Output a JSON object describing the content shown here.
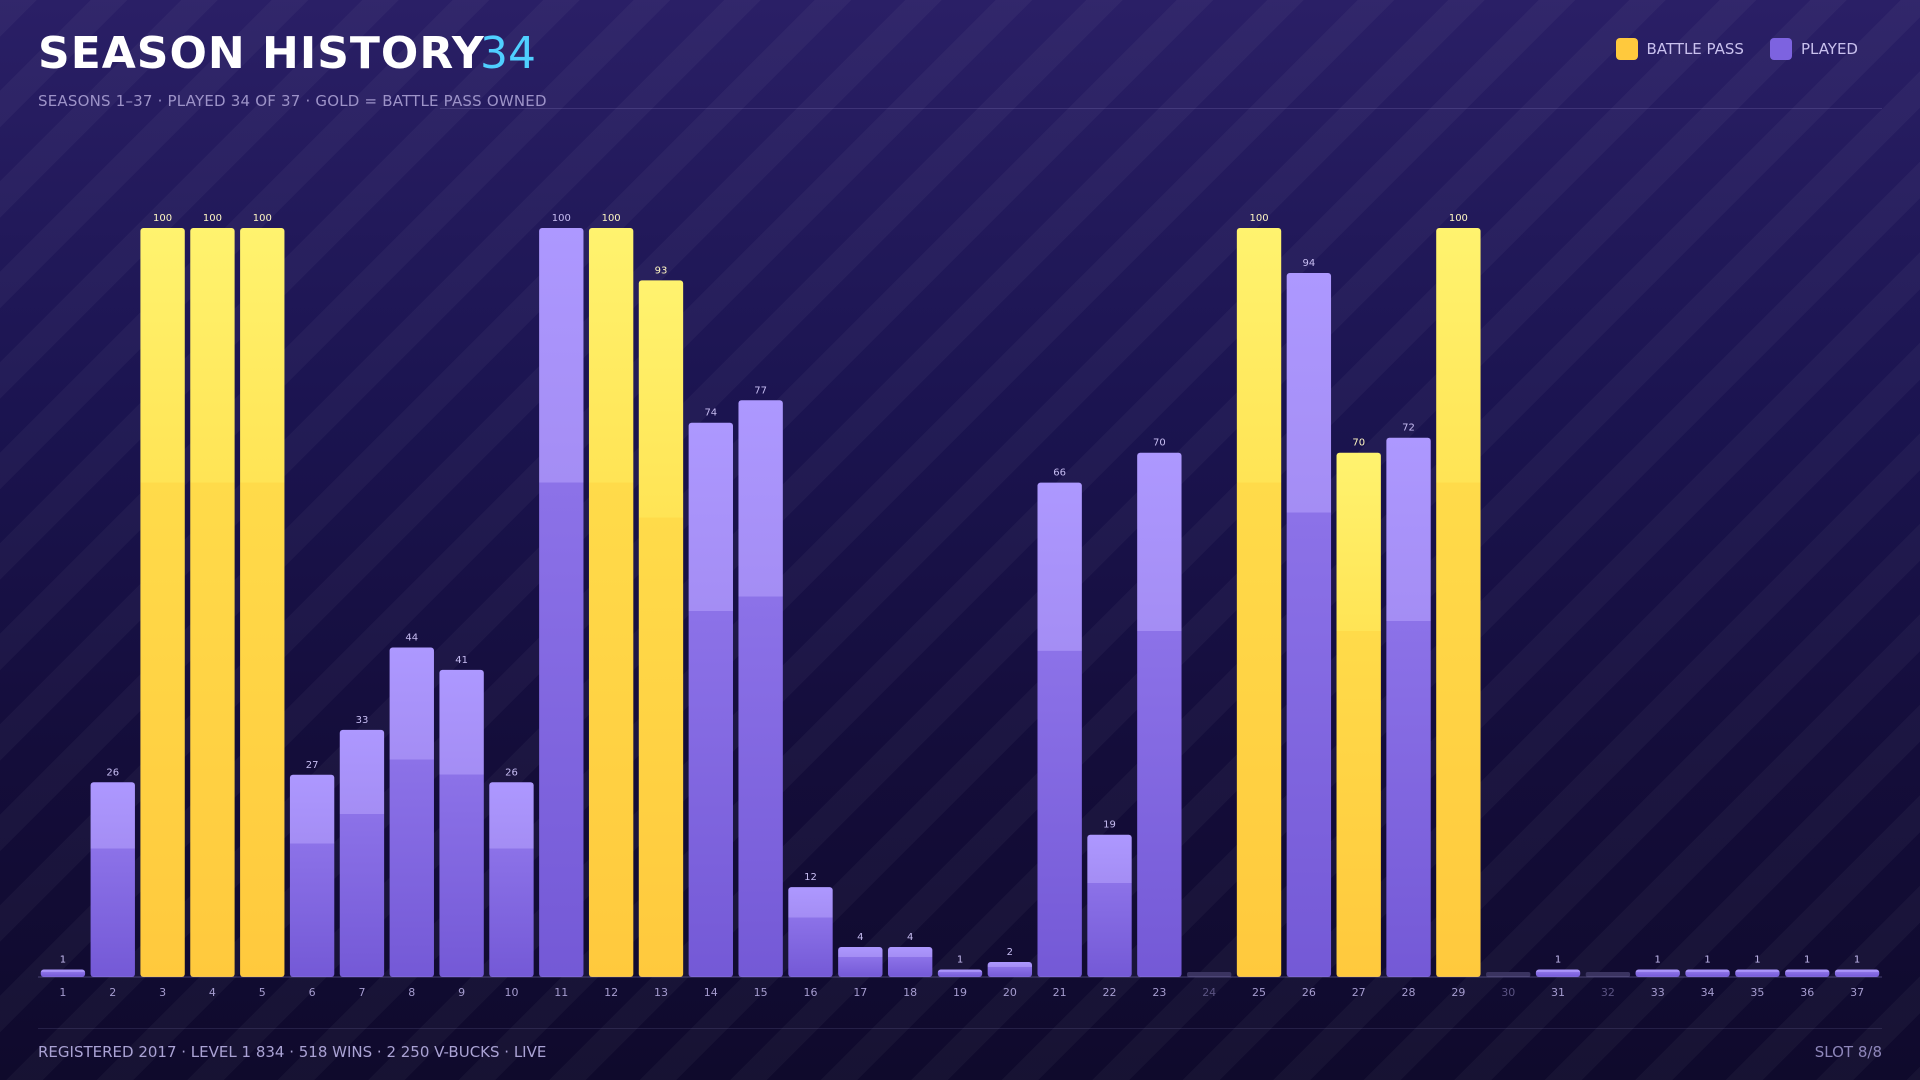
{
  "header": {
    "title": "SEASON HISTORY",
    "count": "34",
    "subtitle": "SEASONS 1–37  ·  PLAYED 34 OF 37  ·  GOLD = BATTLE PASS OWNED"
  },
  "legend": {
    "battle_pass_label": "BATTLE PASS",
    "played_label": "PLAYED"
  },
  "footer": {
    "stats": "REGISTERED 2017  ·  LEVEL 1 834  ·  518 WINS  ·  2 250 V-BUCKS  ·  LIVE",
    "slot": "SLOT 8/8"
  },
  "colors": {
    "battle_pass": "#ffc93d",
    "played": "#7d63e0",
    "unplayed": "#3a3360",
    "accent": "#4fd0ff"
  },
  "chart_data": {
    "type": "bar",
    "title": "SEASON HISTORY",
    "xlabel": "",
    "ylabel": "",
    "ylim": [
      0,
      100
    ],
    "grid": false,
    "legend_position": "top-right",
    "categories": [
      "1",
      "2",
      "3",
      "4",
      "5",
      "6",
      "7",
      "8",
      "9",
      "10",
      "11",
      "12",
      "13",
      "14",
      "15",
      "16",
      "17",
      "18",
      "19",
      "20",
      "21",
      "22",
      "23",
      "24",
      "25",
      "26",
      "27",
      "28",
      "29",
      "30",
      "31",
      "32",
      "33",
      "34",
      "35",
      "36",
      "37"
    ],
    "values": [
      1,
      26,
      100,
      100,
      100,
      27,
      33,
      44,
      41,
      26,
      100,
      100,
      93,
      74,
      77,
      12,
      4,
      4,
      1,
      2,
      66,
      19,
      70,
      0,
      100,
      94,
      70,
      72,
      100,
      0,
      1,
      0,
      1,
      1,
      1,
      1,
      1
    ],
    "battle_pass": [
      false,
      false,
      true,
      true,
      true,
      false,
      false,
      false,
      false,
      false,
      false,
      true,
      true,
      false,
      false,
      false,
      false,
      false,
      false,
      false,
      false,
      false,
      false,
      false,
      true,
      false,
      true,
      false,
      true,
      false,
      false,
      false,
      false,
      false,
      false,
      false,
      false
    ],
    "played": [
      true,
      true,
      true,
      true,
      true,
      true,
      true,
      true,
      true,
      true,
      true,
      true,
      true,
      true,
      true,
      true,
      true,
      true,
      true,
      true,
      true,
      true,
      true,
      false,
      true,
      true,
      true,
      true,
      true,
      false,
      true,
      false,
      true,
      true,
      true,
      true,
      true
    ],
    "series": [
      {
        "name": "BATTLE PASS"
      },
      {
        "name": "PLAYED"
      }
    ]
  }
}
